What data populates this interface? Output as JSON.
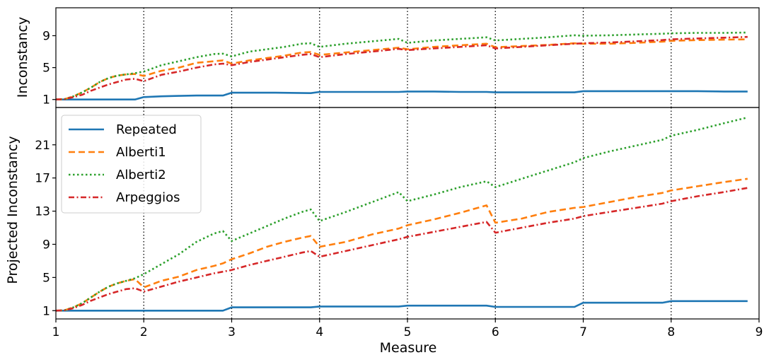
{
  "chart_data": [
    {
      "type": "line",
      "panel": "top",
      "xlabel": "",
      "ylabel": "Inconstancy",
      "xlim": [
        1,
        9
      ],
      "ylim": [
        0,
        12.5
      ],
      "yticks": [
        1,
        5,
        9
      ],
      "ytick_labels": [
        "1",
        "5",
        "9"
      ],
      "vlines": [
        2,
        3,
        4,
        5,
        6,
        7,
        8
      ],
      "series": [
        {
          "name": "Repeated",
          "color": "#1f77b4",
          "style": "solid",
          "x": [
            1,
            1.1,
            1.2,
            1.3,
            1.4,
            1.5,
            1.6,
            1.7,
            1.8,
            1.9,
            2,
            2.2,
            2.4,
            2.6,
            2.8,
            2.9,
            3,
            3.2,
            3.5,
            3.9,
            4,
            4.2,
            4.5,
            4.9,
            5,
            5.3,
            5.6,
            5.9,
            6,
            6.3,
            6.6,
            6.9,
            7,
            7.3,
            7.6,
            7.9,
            8,
            8.3,
            8.6,
            8.87
          ],
          "y": [
            1,
            1,
            1,
            1,
            1,
            1,
            1,
            1,
            1,
            1,
            1.3,
            1.4,
            1.45,
            1.5,
            1.5,
            1.5,
            1.85,
            1.85,
            1.85,
            1.8,
            1.95,
            1.95,
            1.95,
            1.95,
            2,
            2,
            1.95,
            1.95,
            1.9,
            1.9,
            1.9,
            1.9,
            2.05,
            2.05,
            2.05,
            2.05,
            2.05,
            2.05,
            2.0,
            2.0
          ]
        },
        {
          "name": "Alberti1",
          "color": "#ff7f0e",
          "style": "dashed",
          "x": [
            1,
            1.1,
            1.2,
            1.3,
            1.4,
            1.5,
            1.6,
            1.7,
            1.8,
            1.9,
            2,
            2.2,
            2.4,
            2.6,
            2.8,
            2.9,
            3,
            3.2,
            3.4,
            3.6,
            3.8,
            3.9,
            4,
            4.3,
            4.6,
            4.9,
            5,
            5.3,
            5.6,
            5.9,
            6,
            6.3,
            6.6,
            6.9,
            7,
            7.3,
            7.6,
            7.9,
            8,
            8.3,
            8.6,
            8.87
          ],
          "y": [
            1,
            1.05,
            1.4,
            1.9,
            2.5,
            3.2,
            3.7,
            4,
            4.15,
            4.2,
            3.95,
            4.6,
            5,
            5.6,
            5.8,
            5.9,
            5.5,
            5.9,
            6.2,
            6.5,
            6.9,
            6.95,
            6.6,
            6.9,
            7.2,
            7.5,
            7.3,
            7.6,
            7.8,
            8.0,
            7.55,
            7.7,
            7.85,
            8.05,
            8.0,
            8.0,
            8.1,
            8.25,
            8.35,
            8.45,
            8.5,
            8.55
          ],
          "_unused": []
        },
        {
          "name": "Alberti2",
          "color": "#2ca02c",
          "style": "dotted",
          "x": [
            1,
            1.1,
            1.2,
            1.3,
            1.4,
            1.5,
            1.6,
            1.7,
            1.8,
            1.9,
            2,
            2.2,
            2.4,
            2.6,
            2.8,
            2.9,
            3,
            3.2,
            3.4,
            3.6,
            3.8,
            3.9,
            4,
            4.3,
            4.6,
            4.9,
            5,
            5.3,
            5.6,
            5.9,
            6,
            6.3,
            6.6,
            6.9,
            7,
            7.3,
            7.6,
            7.9,
            8,
            8.3,
            8.6,
            8.87
          ],
          "y": [
            1,
            1.05,
            1.4,
            1.9,
            2.5,
            3.2,
            3.7,
            4,
            4.15,
            4.3,
            4.5,
            5.3,
            5.8,
            6.3,
            6.7,
            6.75,
            6.4,
            7.0,
            7.3,
            7.6,
            8.0,
            8.05,
            7.6,
            8.0,
            8.3,
            8.6,
            8.1,
            8.4,
            8.6,
            8.8,
            8.4,
            8.6,
            8.8,
            9.05,
            9.0,
            9.05,
            9.15,
            9.25,
            9.3,
            9.35,
            9.35,
            9.4
          ]
        },
        {
          "name": "Arpeggios",
          "color": "#d62728",
          "style": "dashdot",
          "x": [
            1,
            1.1,
            1.2,
            1.3,
            1.4,
            1.5,
            1.6,
            1.7,
            1.8,
            1.9,
            2,
            2.2,
            2.4,
            2.6,
            2.8,
            2.9,
            3,
            3.2,
            3.4,
            3.6,
            3.8,
            3.9,
            4,
            4.3,
            4.6,
            4.9,
            5,
            5.3,
            5.6,
            5.9,
            6,
            6.3,
            6.6,
            6.9,
            7,
            7.3,
            7.6,
            7.9,
            8,
            8.3,
            8.6,
            8.87
          ],
          "y": [
            1,
            1.05,
            1.3,
            1.6,
            2.1,
            2.5,
            2.9,
            3.2,
            3.5,
            3.6,
            3.3,
            4.1,
            4.5,
            5.0,
            5.4,
            5.5,
            5.3,
            5.7,
            6.0,
            6.3,
            6.6,
            6.7,
            6.3,
            6.7,
            7.0,
            7.35,
            7.2,
            7.4,
            7.6,
            7.8,
            7.4,
            7.6,
            7.8,
            8.0,
            8.05,
            8.15,
            8.3,
            8.45,
            8.55,
            8.65,
            8.75,
            8.85
          ]
        }
      ]
    },
    {
      "type": "line",
      "panel": "bottom",
      "xlabel": "Measure",
      "ylabel": "Projected Inconstancy",
      "xlim": [
        1,
        9
      ],
      "ylim": [
        0,
        25.5
      ],
      "xticks": [
        1,
        2,
        3,
        4,
        5,
        6,
        7,
        8,
        9
      ],
      "xtick_labels": [
        "1",
        "2",
        "3",
        "4",
        "5",
        "6",
        "7",
        "8",
        "9"
      ],
      "yticks": [
        1,
        5,
        9,
        13,
        17,
        21
      ],
      "ytick_labels": [
        "1",
        "5",
        "9",
        "13",
        "17",
        "21"
      ],
      "vlines": [
        2,
        3,
        4,
        5,
        6,
        7,
        8
      ],
      "legend_position": "upper-left",
      "series": [
        {
          "name": "Repeated",
          "color": "#1f77b4",
          "style": "solid",
          "x": [
            1,
            1.3,
            1.6,
            1.9,
            2,
            2.3,
            2.6,
            2.9,
            3,
            3.3,
            3.6,
            3.9,
            4,
            4.3,
            4.6,
            4.9,
            5,
            5.3,
            5.6,
            5.9,
            6,
            6.3,
            6.6,
            6.9,
            7,
            7.3,
            7.6,
            7.9,
            8,
            8.3,
            8.6,
            8.87
          ],
          "y": [
            1,
            1,
            1,
            1,
            1,
            1,
            1,
            1,
            1.4,
            1.4,
            1.4,
            1.4,
            1.5,
            1.5,
            1.5,
            1.5,
            1.6,
            1.6,
            1.6,
            1.6,
            1.45,
            1.45,
            1.45,
            1.45,
            1.95,
            1.95,
            1.95,
            1.95,
            2.15,
            2.15,
            2.15,
            2.15
          ]
        },
        {
          "name": "Alberti1",
          "color": "#ff7f0e",
          "style": "dashed",
          "x": [
            1,
            1.1,
            1.2,
            1.3,
            1.4,
            1.5,
            1.6,
            1.7,
            1.8,
            1.9,
            2,
            2.2,
            2.4,
            2.6,
            2.8,
            2.9,
            3,
            3.2,
            3.4,
            3.6,
            3.8,
            3.9,
            4,
            4.3,
            4.6,
            4.9,
            5,
            5.3,
            5.6,
            5.9,
            6,
            6.3,
            6.6,
            6.9,
            7,
            7.3,
            7.6,
            7.9,
            8,
            8.3,
            8.6,
            8.87
          ],
          "y": [
            1,
            1.05,
            1.4,
            1.9,
            2.6,
            3.3,
            3.9,
            4.3,
            4.6,
            4.8,
            3.8,
            4.6,
            5.1,
            5.9,
            6.4,
            6.7,
            7.2,
            7.9,
            8.7,
            9.3,
            9.8,
            10.0,
            8.7,
            9.3,
            10.2,
            10.9,
            11.3,
            12.0,
            12.8,
            13.7,
            11.6,
            12.1,
            12.9,
            13.4,
            13.5,
            14.1,
            14.7,
            15.2,
            15.5,
            16.0,
            16.5,
            16.9
          ]
        },
        {
          "name": "Alberti2",
          "color": "#2ca02c",
          "style": "dotted",
          "x": [
            1,
            1.1,
            1.2,
            1.3,
            1.4,
            1.5,
            1.6,
            1.7,
            1.8,
            1.9,
            2,
            2.2,
            2.4,
            2.6,
            2.8,
            2.9,
            3,
            3.2,
            3.4,
            3.6,
            3.8,
            3.9,
            4,
            4.3,
            4.6,
            4.9,
            5,
            5.3,
            5.6,
            5.9,
            6,
            6.3,
            6.6,
            6.9,
            7,
            7.3,
            7.6,
            7.9,
            8,
            8.3,
            8.6,
            8.87
          ],
          "y": [
            1,
            1.05,
            1.4,
            1.9,
            2.6,
            3.3,
            3.9,
            4.3,
            4.6,
            4.9,
            5.4,
            6.6,
            7.8,
            9.3,
            10.3,
            10.6,
            9.4,
            10.3,
            11.2,
            12.1,
            12.9,
            13.2,
            11.8,
            12.9,
            14.1,
            15.3,
            14.2,
            15.0,
            15.9,
            16.6,
            15.9,
            16.9,
            17.9,
            18.9,
            19.4,
            20.2,
            20.9,
            21.6,
            22.1,
            22.8,
            23.6,
            24.3
          ]
        },
        {
          "name": "Arpeggios",
          "color": "#d62728",
          "style": "dashdot",
          "x": [
            1,
            1.1,
            1.2,
            1.3,
            1.4,
            1.5,
            1.6,
            1.7,
            1.8,
            1.9,
            2,
            2.2,
            2.4,
            2.6,
            2.8,
            2.9,
            3,
            3.2,
            3.4,
            3.6,
            3.8,
            3.9,
            4,
            4.3,
            4.6,
            4.9,
            5,
            5.3,
            5.6,
            5.9,
            6,
            6.3,
            6.6,
            6.9,
            7,
            7.3,
            7.6,
            7.9,
            8,
            8.3,
            8.6,
            8.87
          ],
          "y": [
            1,
            1.05,
            1.3,
            1.7,
            2.2,
            2.6,
            3.0,
            3.3,
            3.6,
            3.7,
            3.3,
            3.9,
            4.5,
            5.0,
            5.5,
            5.7,
            5.9,
            6.5,
            7.0,
            7.5,
            8.0,
            8.2,
            7.5,
            8.2,
            8.9,
            9.6,
            9.9,
            10.5,
            11.1,
            11.7,
            10.4,
            11.0,
            11.6,
            12.1,
            12.4,
            12.9,
            13.4,
            13.9,
            14.2,
            14.8,
            15.3,
            15.8
          ]
        }
      ]
    }
  ]
}
